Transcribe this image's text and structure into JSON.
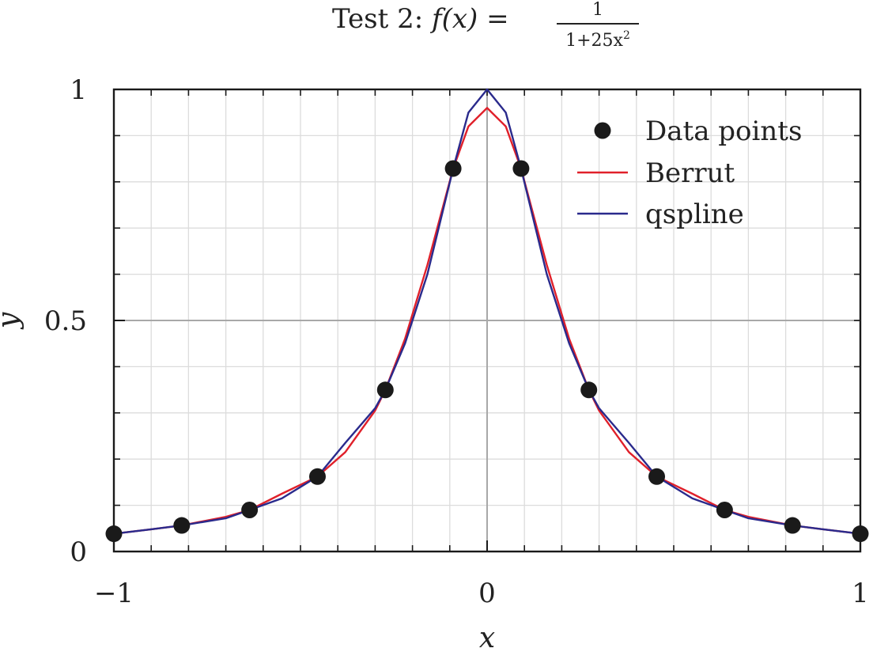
{
  "chart_data": {
    "type": "line",
    "title": {
      "prefix": "Test 2:",
      "fx": "f(x) =",
      "numerator": "1",
      "denominator_main": "1+25x",
      "denominator_exp": "2"
    },
    "xlabel": "x",
    "ylabel": "y",
    "xlim": [
      -1,
      1
    ],
    "ylim": [
      0,
      1
    ],
    "x_ticks": [
      {
        "value": -1,
        "label": "−1"
      },
      {
        "value": 0,
        "label": "0"
      },
      {
        "value": 1,
        "label": "1"
      }
    ],
    "y_ticks": [
      {
        "value": 0,
        "label": "0"
      },
      {
        "value": 0.5,
        "label": "0.5"
      },
      {
        "value": 1,
        "label": "1"
      }
    ],
    "grid": true,
    "legend_position": "top-right",
    "legend": [
      {
        "name": "Data points",
        "kind": "marker",
        "color": "#1a1a1a"
      },
      {
        "name": "Berrut",
        "kind": "line",
        "color": "#e0202a"
      },
      {
        "name": "qspline",
        "kind": "line",
        "color": "#2a2a8c"
      }
    ],
    "data_points": {
      "name": "Data points",
      "x": [
        -1,
        -0.8182,
        -0.6364,
        -0.4545,
        -0.2727,
        -0.0909,
        0.0909,
        0.2727,
        0.4545,
        0.6364,
        0.8182,
        1
      ],
      "y": [
        0.0385,
        0.0564,
        0.0899,
        0.1622,
        0.3497,
        0.8288,
        0.8288,
        0.3497,
        0.1622,
        0.0899,
        0.0564,
        0.0385
      ]
    },
    "series": [
      {
        "name": "Berrut",
        "color": "#e0202a",
        "x": [
          -1,
          -0.9,
          -0.8182,
          -0.7,
          -0.6364,
          -0.55,
          -0.4545,
          -0.38,
          -0.3,
          -0.2727,
          -0.22,
          -0.16,
          -0.0909,
          -0.05,
          0,
          0.05,
          0.0909,
          0.16,
          0.22,
          0.2727,
          0.3,
          0.38,
          0.4545,
          0.55,
          0.6364,
          0.7,
          0.8182,
          0.9,
          1
        ],
        "y": [
          0.0385,
          0.048,
          0.0564,
          0.075,
          0.0899,
          0.125,
          0.1622,
          0.215,
          0.305,
          0.3497,
          0.46,
          0.62,
          0.8288,
          0.92,
          0.96,
          0.92,
          0.8288,
          0.62,
          0.46,
          0.3497,
          0.305,
          0.215,
          0.1622,
          0.125,
          0.0899,
          0.075,
          0.0564,
          0.048,
          0.0385
        ]
      },
      {
        "name": "qspline",
        "color": "#2a2a8c",
        "x": [
          -1,
          -0.9,
          -0.8182,
          -0.7,
          -0.6364,
          -0.55,
          -0.4545,
          -0.38,
          -0.3,
          -0.2727,
          -0.22,
          -0.16,
          -0.0909,
          -0.05,
          0,
          0.05,
          0.0909,
          0.16,
          0.22,
          0.2727,
          0.3,
          0.38,
          0.4545,
          0.55,
          0.6364,
          0.7,
          0.8182,
          0.9,
          1
        ],
        "y": [
          0.0385,
          0.048,
          0.0564,
          0.072,
          0.0899,
          0.115,
          0.1622,
          0.235,
          0.31,
          0.3497,
          0.45,
          0.6,
          0.8288,
          0.95,
          1.0,
          0.95,
          0.8288,
          0.6,
          0.45,
          0.3497,
          0.31,
          0.235,
          0.1622,
          0.115,
          0.0899,
          0.072,
          0.0564,
          0.048,
          0.0385
        ]
      }
    ]
  }
}
